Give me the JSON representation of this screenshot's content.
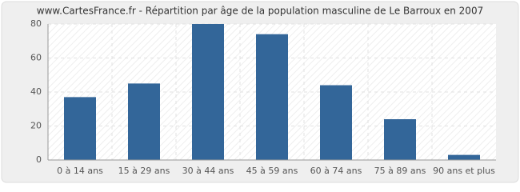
{
  "chart_data": {
    "type": "bar",
    "title": "www.CartesFrance.fr - Répartition par âge de la population masculine de Le Barroux en 2007",
    "categories": [
      "0 à 14 ans",
      "15 à 29 ans",
      "30 à 44 ans",
      "45 à 59 ans",
      "60 à 74 ans",
      "75 à 89 ans",
      "90 ans et plus"
    ],
    "values": [
      37,
      45,
      80,
      74,
      44,
      24,
      3
    ],
    "color": "#336699",
    "ylim": [
      0,
      80
    ],
    "yticks": [
      0,
      20,
      40,
      60,
      80
    ],
    "grid": true
  }
}
